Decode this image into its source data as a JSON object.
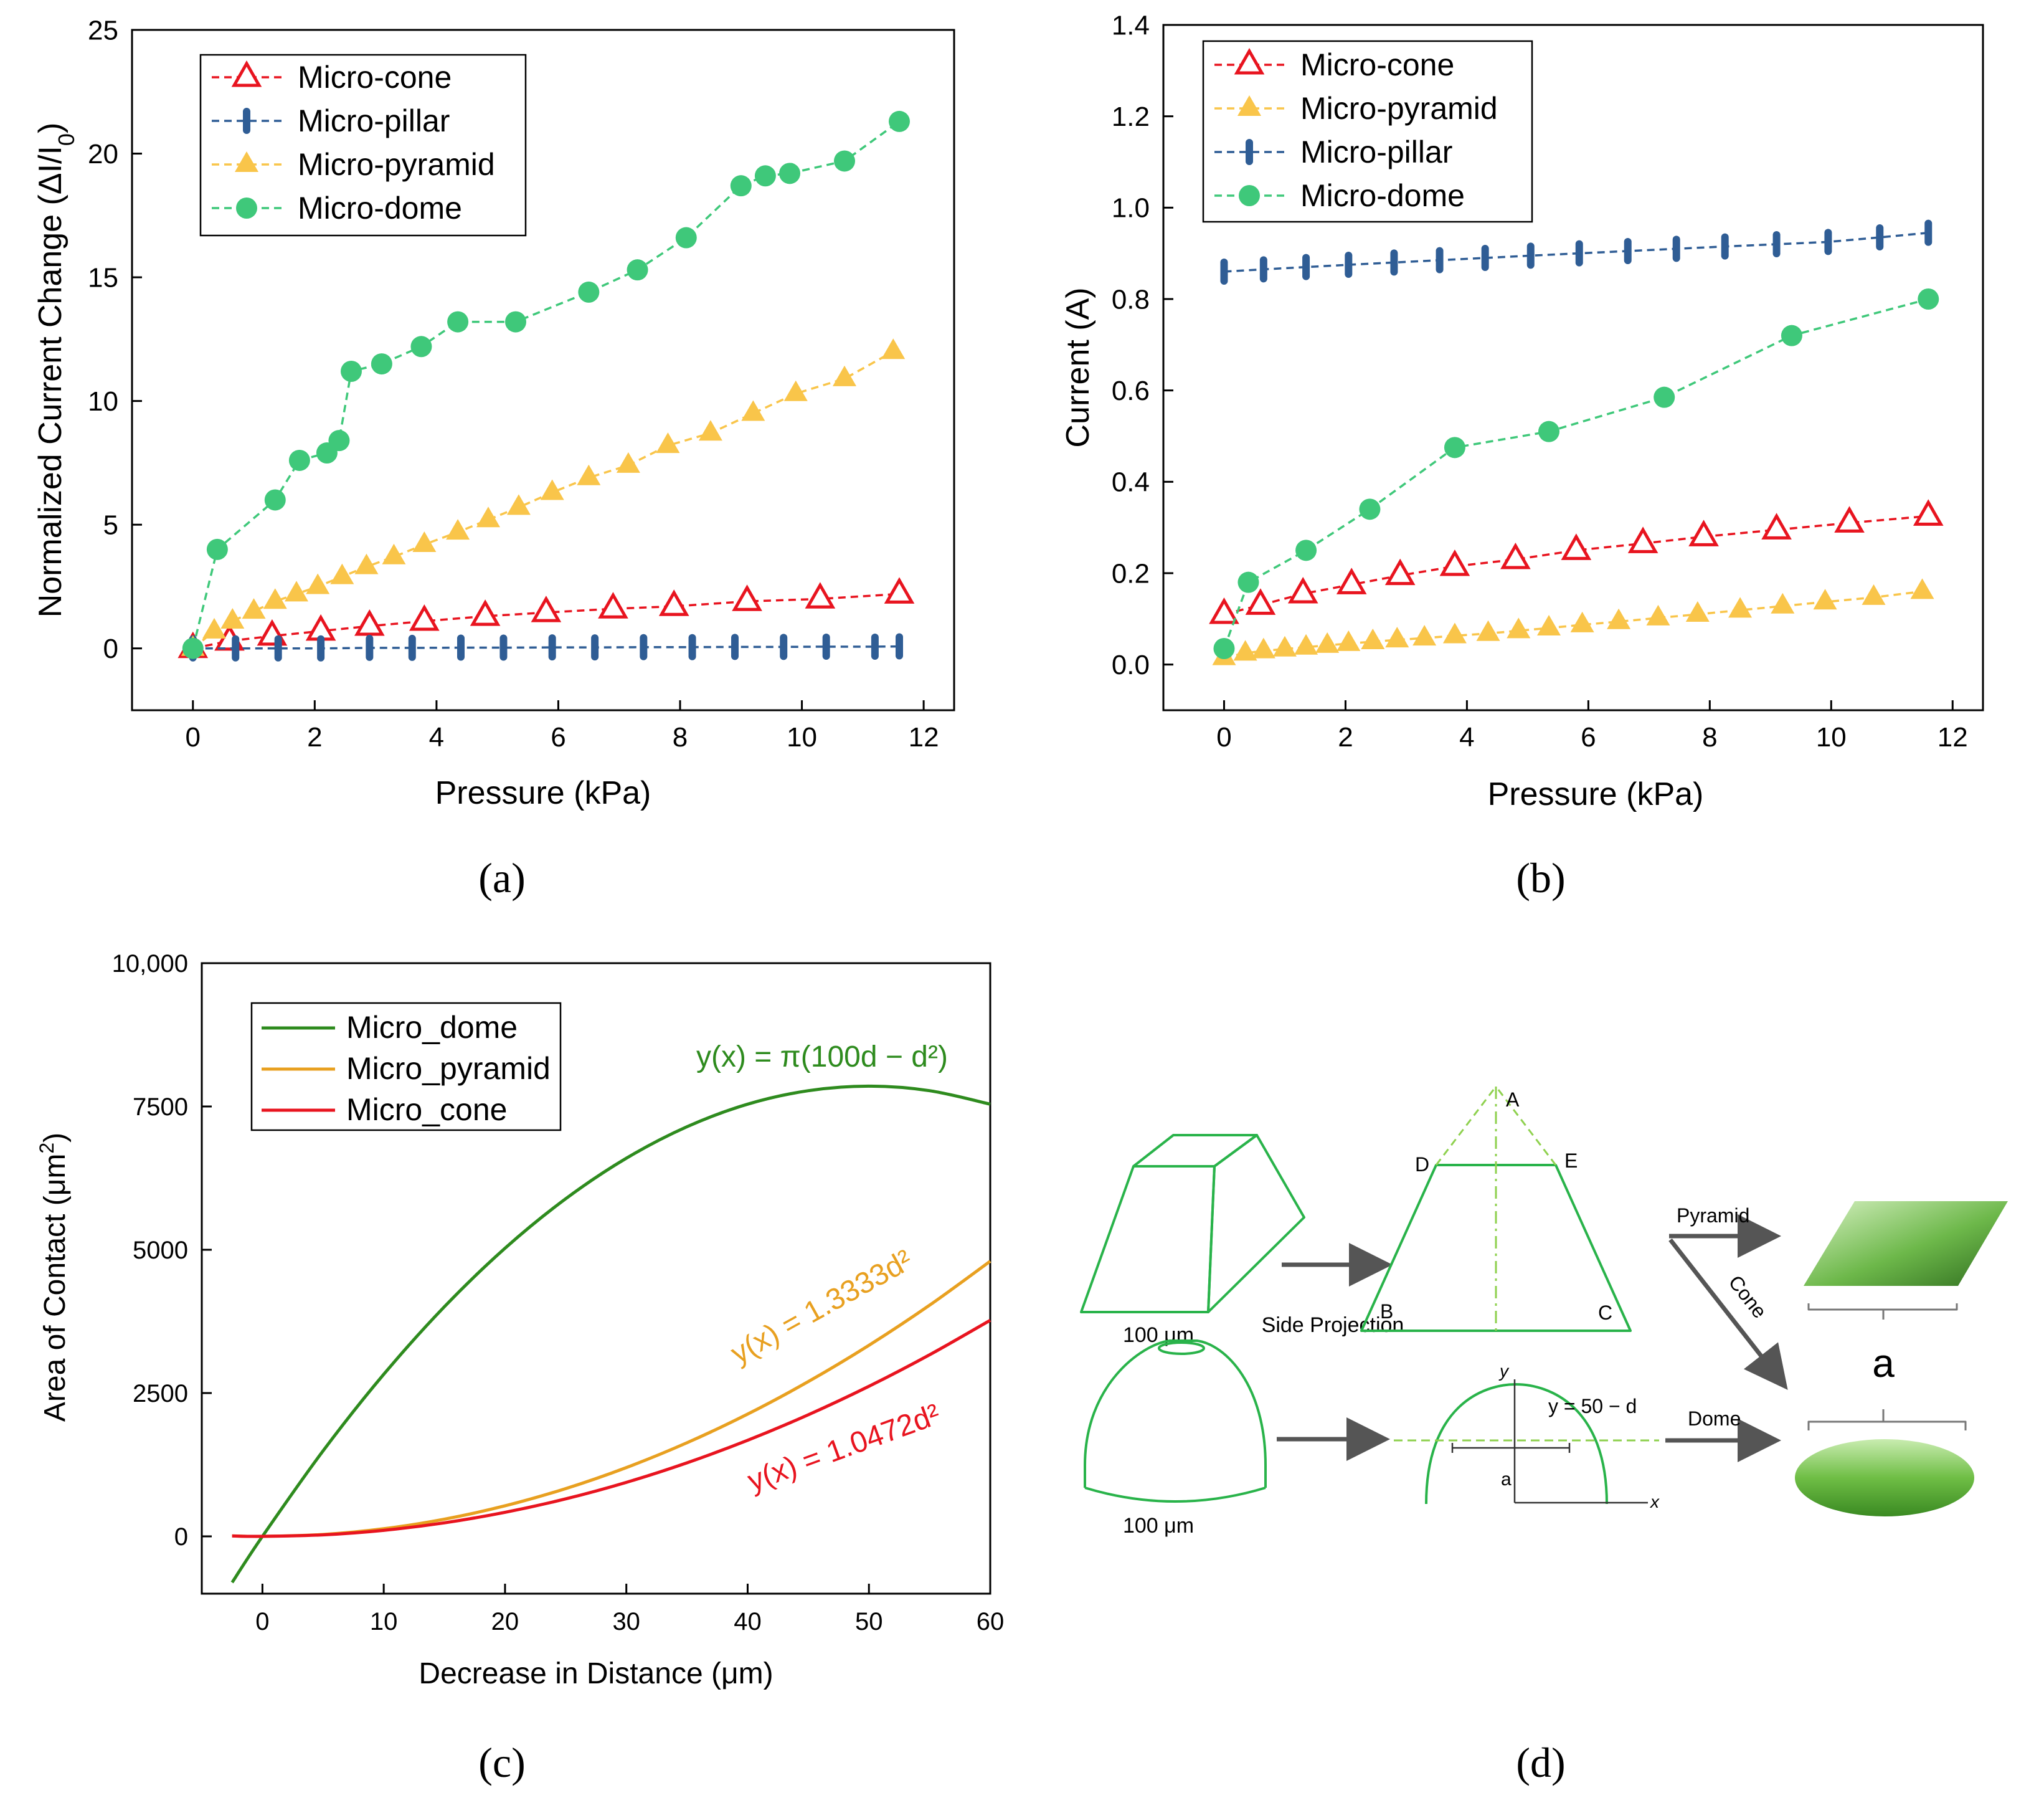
{
  "figure": {
    "panel_labels": [
      "(a)",
      "(b)",
      "(c)",
      "(d)"
    ]
  },
  "colors": {
    "cone": "#e8141f",
    "pillar": "#2f5d95",
    "pyramid": "#f9c54a",
    "dome": "#3fc87a",
    "c_dome": "#2e8b1e",
    "c_pyramid": "#e8a020",
    "c_cone": "#e8141f",
    "diagram_green": "#29b34a"
  },
  "chart_data": [
    {
      "type": "line",
      "panel": "a",
      "title": "",
      "xlabel": "Pressure (kPa)",
      "ylabel": "Normalized Current Change (ΔI/I₀)",
      "xlim": [
        -1,
        12.5
      ],
      "ylim": [
        -2.5,
        25
      ],
      "xticks": [
        0,
        2,
        4,
        6,
        8,
        10,
        12
      ],
      "yticks": [
        0,
        5,
        10,
        15,
        20,
        25
      ],
      "legend_position": "top-left",
      "series": [
        {
          "name": "Micro-cone",
          "marker": "open-triangle",
          "color_key": "cone",
          "x": [
            0,
            0.6,
            1.3,
            2.1,
            2.9,
            3.8,
            4.8,
            5.8,
            6.9,
            7.9,
            9.1,
            10.3,
            11.6
          ],
          "y": [
            0,
            0.3,
            0.5,
            0.7,
            0.9,
            1.1,
            1.3,
            1.45,
            1.6,
            1.7,
            1.9,
            2.0,
            2.2
          ]
        },
        {
          "name": "Micro-pillar",
          "marker": "vbar",
          "color_key": "pillar",
          "x": [
            0,
            0.7,
            1.4,
            2.1,
            2.9,
            3.6,
            4.4,
            5.1,
            5.9,
            6.6,
            7.4,
            8.2,
            8.9,
            9.7,
            10.4,
            11.2,
            11.6
          ],
          "y": [
            0,
            0,
            0,
            0,
            0.02,
            0.02,
            0.03,
            0.03,
            0.04,
            0.04,
            0.05,
            0.05,
            0.06,
            0.06,
            0.07,
            0.07,
            0.08
          ]
        },
        {
          "name": "Micro-pyramid",
          "marker": "filled-triangle",
          "color_key": "pyramid",
          "x": [
            0,
            0.35,
            0.65,
            1.0,
            1.35,
            1.7,
            2.05,
            2.45,
            2.85,
            3.3,
            3.8,
            4.35,
            4.85,
            5.35,
            5.9,
            6.5,
            7.15,
            7.8,
            8.5,
            9.2,
            9.9,
            10.7,
            11.5
          ],
          "y": [
            0,
            0.7,
            1.1,
            1.5,
            1.9,
            2.2,
            2.5,
            2.9,
            3.3,
            3.7,
            4.2,
            4.7,
            5.2,
            5.7,
            6.3,
            6.9,
            7.4,
            8.2,
            8.7,
            9.5,
            10.3,
            10.9,
            12.0
          ]
        },
        {
          "name": "Micro-dome",
          "marker": "filled-circle",
          "color_key": "dome",
          "x": [
            0,
            0.4,
            1.35,
            1.75,
            2.2,
            2.4,
            2.6,
            3.1,
            3.75,
            4.35,
            5.3,
            6.5,
            7.3,
            8.1,
            9.0,
            9.4,
            9.8,
            10.7,
            11.6
          ],
          "y": [
            0,
            4.0,
            6.0,
            7.6,
            7.9,
            8.4,
            11.2,
            11.5,
            12.2,
            13.2,
            13.2,
            14.4,
            15.3,
            16.6,
            18.7,
            19.1,
            19.2,
            19.7,
            21.3
          ]
        }
      ]
    },
    {
      "type": "line",
      "panel": "b",
      "title": "",
      "xlabel": "Pressure (kPa)",
      "ylabel": "Current (A)",
      "xlim": [
        -1,
        12.5
      ],
      "ylim": [
        -0.1,
        1.4
      ],
      "xticks": [
        0,
        2,
        4,
        6,
        8,
        10,
        12
      ],
      "yticks": [
        0.0,
        0.2,
        0.4,
        0.6,
        0.8,
        1.0,
        1.2,
        1.4
      ],
      "legend_position": "top-left",
      "series": [
        {
          "name": "Micro-cone",
          "marker": "open-triangle",
          "color_key": "cone",
          "x": [
            0,
            0.6,
            1.3,
            2.1,
            2.9,
            3.8,
            4.8,
            5.8,
            6.9,
            7.9,
            9.1,
            10.3,
            11.6
          ],
          "y": [
            0.11,
            0.13,
            0.155,
            0.175,
            0.195,
            0.215,
            0.23,
            0.25,
            0.265,
            0.28,
            0.295,
            0.31,
            0.325
          ]
        },
        {
          "name": "Micro-pyramid",
          "marker": "filled-triangle",
          "color_key": "pyramid",
          "x": [
            0,
            0.35,
            0.65,
            1.0,
            1.35,
            1.7,
            2.05,
            2.45,
            2.85,
            3.3,
            3.8,
            4.35,
            4.85,
            5.35,
            5.9,
            6.5,
            7.15,
            7.8,
            8.5,
            9.2,
            9.9,
            10.7,
            11.5
          ],
          "y": [
            0.015,
            0.025,
            0.03,
            0.034,
            0.038,
            0.042,
            0.046,
            0.05,
            0.054,
            0.058,
            0.063,
            0.068,
            0.074,
            0.08,
            0.087,
            0.094,
            0.102,
            0.11,
            0.119,
            0.128,
            0.137,
            0.147,
            0.16
          ]
        },
        {
          "name": "Micro-pillar",
          "marker": "vbar",
          "color_key": "pillar",
          "x": [
            0,
            0.65,
            1.35,
            2.05,
            2.8,
            3.55,
            4.3,
            5.05,
            5.85,
            6.65,
            7.45,
            8.25,
            9.1,
            9.95,
            10.8,
            11.6
          ],
          "y": [
            0.86,
            0.865,
            0.87,
            0.875,
            0.88,
            0.885,
            0.89,
            0.895,
            0.9,
            0.905,
            0.91,
            0.915,
            0.92,
            0.925,
            0.935,
            0.945
          ]
        },
        {
          "name": "Micro-dome",
          "marker": "filled-circle",
          "color_key": "dome",
          "x": [
            0,
            0.4,
            1.35,
            2.4,
            3.8,
            5.35,
            7.25,
            9.35,
            11.6
          ],
          "y": [
            0.035,
            0.18,
            0.25,
            0.34,
            0.475,
            0.51,
            0.585,
            0.72,
            0.8
          ]
        }
      ]
    },
    {
      "type": "line",
      "panel": "c",
      "title": "",
      "xlabel": "Decrease in Distance (μm)",
      "ylabel": "Area of Contact (μm²)",
      "xlim": [
        -5,
        60
      ],
      "ylim": [
        -1000,
        10000
      ],
      "xticks": [
        0,
        10,
        20,
        30,
        40,
        50,
        60
      ],
      "ytick_values": [
        0,
        2500,
        5000,
        7500,
        10000
      ],
      "ytick_labels": [
        "0",
        "2500",
        "5000",
        "7500",
        "10,000"
      ],
      "legend_position": "top-left",
      "series": [
        {
          "name": "Micro_dome",
          "color_key": "c_dome",
          "equation": "y(x) = π(100d − d²)",
          "x": [
            -2.5,
            0,
            5,
            10,
            15,
            20,
            25,
            30,
            35,
            40,
            45,
            50,
            55,
            60
          ],
          "y": [
            -805,
            0,
            1492,
            2827,
            4006,
            5027,
            5890,
            6597,
            7147,
            7540,
            7775,
            7854,
            7775,
            7540
          ]
        },
        {
          "name": "Micro_pyramid",
          "color_key": "c_pyramid",
          "equation": "y(x) = 1.3333d²",
          "x": [
            -2.5,
            0,
            5,
            10,
            15,
            20,
            25,
            30,
            35,
            40,
            45,
            50,
            55,
            60
          ],
          "y": [
            8.3,
            0,
            33,
            133,
            300,
            533,
            833,
            1200,
            1633,
            2133,
            2700,
            3333,
            4033,
            4800
          ]
        },
        {
          "name": "Micro_cone",
          "color_key": "c_cone",
          "equation": "y(x) = 1.0472d²",
          "x": [
            -2.5,
            0,
            5,
            10,
            15,
            20,
            25,
            30,
            35,
            40,
            45,
            50,
            55,
            60
          ],
          "y": [
            6.5,
            0,
            26,
            105,
            236,
            419,
            654,
            942,
            1283,
            1676,
            2121,
            2618,
            3168,
            3770
          ]
        }
      ]
    }
  ],
  "diagram": {
    "size_label_top": "100 μm",
    "size_label_bottom": "100 μm",
    "arrow_label": "Side Projection",
    "points": [
      "A",
      "D",
      "E",
      "B",
      "C"
    ],
    "axis_y": "y",
    "axis_x": "x",
    "axis_a": "a",
    "dome_line_eq": "y = 50 − d",
    "pyramid_label": "Pyramid",
    "cone_label": "Cone",
    "dome_label": "Dome",
    "result_label": "a"
  }
}
